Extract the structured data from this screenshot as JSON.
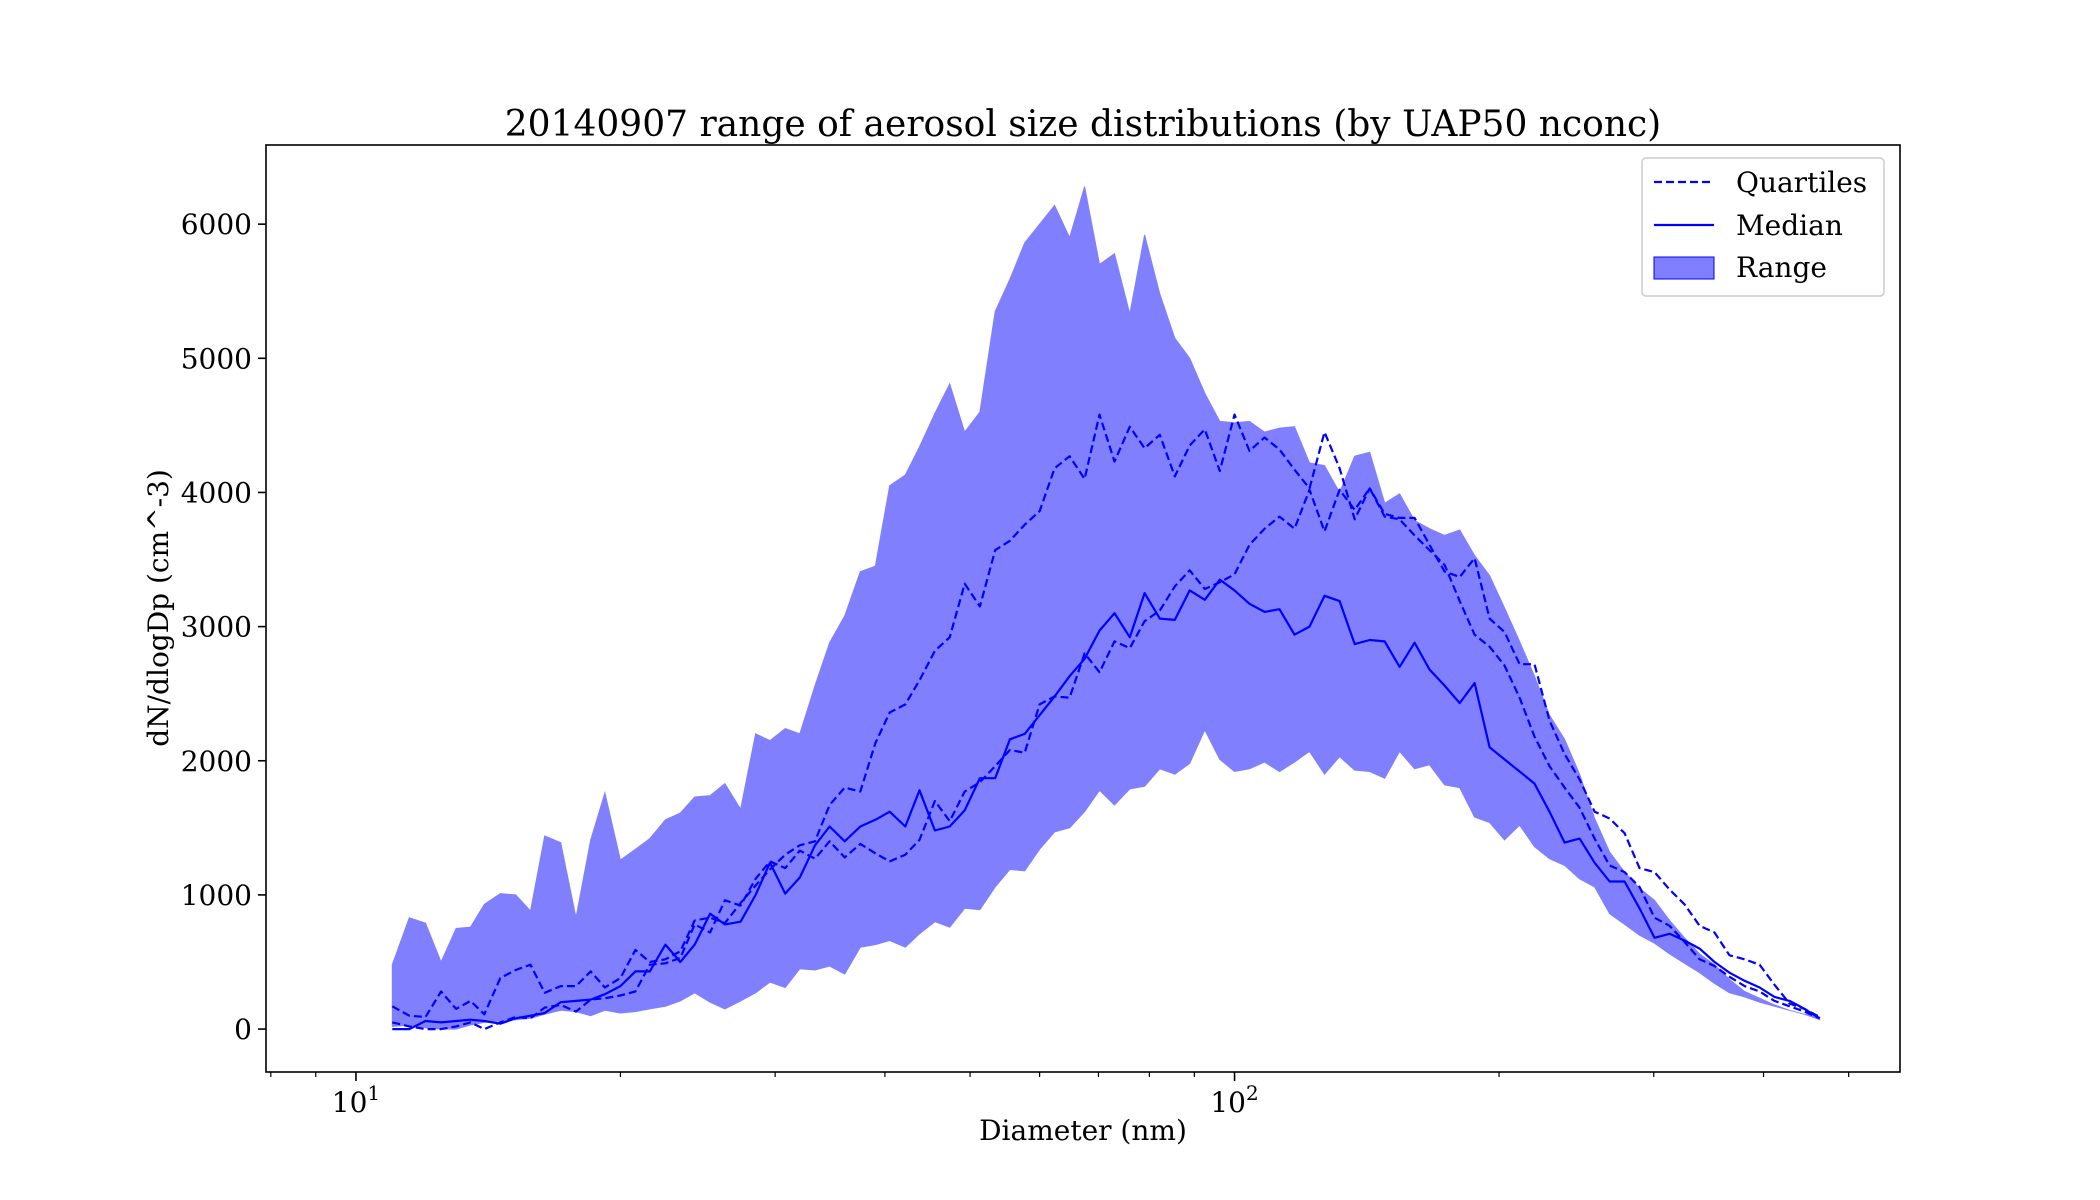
{
  "chart_data": {
    "type": "area",
    "title": "20140907 range of aerosol size distributions (by UAP50 nconc)",
    "xlabel": "Diameter (nm)",
    "ylabel": "dN/dlogDp (cm^-3)",
    "xscale": "log",
    "xlim": [
      7.9,
      572
    ],
    "ylim": [
      -320,
      6590
    ],
    "xticks": [
      {
        "value": 10,
        "base": "10",
        "exp": "1"
      },
      {
        "value": 100,
        "base": "10",
        "exp": "2"
      }
    ],
    "yticks": [
      0,
      1000,
      2000,
      3000,
      4000,
      5000,
      6000
    ],
    "grid": false,
    "legend": {
      "position": "top-right",
      "entries": [
        {
          "label": "Quartiles",
          "style": "dashed"
        },
        {
          "label": "Median",
          "style": "solid"
        },
        {
          "label": "Range",
          "style": "fill"
        }
      ]
    },
    "colors": {
      "line": "#0000ff",
      "fill": "#8080ff"
    },
    "x": [
      11.0,
      11.5,
      12.0,
      12.5,
      13.0,
      13.5,
      14.0,
      14.6,
      15.2,
      15.8,
      16.4,
      17.1,
      17.8,
      18.5,
      19.2,
      20.0,
      20.8,
      21.6,
      22.5,
      23.4,
      24.3,
      25.3,
      26.3,
      27.4,
      28.5,
      29.6,
      30.8,
      32.0,
      33.3,
      34.6,
      36.0,
      37.5,
      39.0,
      40.5,
      42.2,
      43.8,
      45.6,
      47.4,
      49.3,
      51.3,
      53.4,
      55.5,
      57.7,
      60.0,
      62.4,
      64.9,
      67.5,
      70.2,
      73.0,
      76.0,
      79.0,
      82.2,
      85.5,
      88.9,
      92.5,
      96.2,
      100.0,
      104.0,
      108.2,
      112.5,
      117.0,
      121.7,
      126.6,
      131.7,
      137.0,
      142.5,
      148.2,
      154.1,
      160.3,
      166.7,
      173.4,
      180.4,
      187.6,
      195.1,
      202.9,
      211.1,
      219.5,
      228.3,
      237.5,
      247.0,
      256.9,
      267.2,
      277.9,
      289.0,
      300.6,
      312.7,
      325.2,
      338.3,
      351.8,
      365.9,
      380.6,
      395.9,
      411.7,
      428.3,
      445.4,
      463.3
    ],
    "series": [
      {
        "name": "Range",
        "type": "fill_between",
        "upper": [
          480,
          830,
          790,
          500,
          750,
          760,
          930,
          1010,
          1000,
          880,
          1440,
          1390,
          830,
          1410,
          1760,
          1260,
          1340,
          1420,
          1560,
          1610,
          1730,
          1740,
          1830,
          1640,
          2200,
          2150,
          2240,
          2200,
          2560,
          2880,
          3080,
          3410,
          3450,
          4050,
          4130,
          4340,
          4590,
          4810,
          4450,
          4600,
          5350,
          5590,
          5860,
          6000,
          6140,
          5900,
          6280,
          5700,
          5780,
          5330,
          5920,
          5480,
          5150,
          5000,
          4740,
          4530,
          4520,
          4530,
          4450,
          4480,
          4490,
          4220,
          4200,
          4000,
          4270,
          4300,
          3920,
          3990,
          3790,
          3730,
          3680,
          3720,
          3530,
          3380,
          3140,
          2890,
          2630,
          2340,
          2160,
          1900,
          1570,
          1320,
          1170,
          1050,
          960,
          810,
          680,
          560,
          480,
          370,
          280,
          230,
          180,
          140,
          110,
          90
        ],
        "lower": [
          20,
          30,
          10,
          0,
          0,
          30,
          50,
          60,
          70,
          80,
          110,
          140,
          130,
          100,
          140,
          120,
          130,
          150,
          170,
          210,
          270,
          200,
          150,
          210,
          270,
          350,
          310,
          450,
          440,
          470,
          410,
          610,
          630,
          660,
          610,
          710,
          800,
          760,
          900,
          890,
          1060,
          1190,
          1180,
          1340,
          1470,
          1500,
          1620,
          1780,
          1670,
          1790,
          1810,
          1940,
          1900,
          1980,
          2230,
          2010,
          1920,
          1940,
          1990,
          1920,
          1990,
          2070,
          1900,
          2030,
          1930,
          1920,
          1870,
          2070,
          1940,
          1970,
          1820,
          1800,
          1580,
          1540,
          1410,
          1520,
          1360,
          1270,
          1220,
          1120,
          1060,
          860,
          780,
          700,
          640,
          560,
          490,
          420,
          340,
          270,
          240,
          200,
          170,
          140,
          110,
          70
        ]
      },
      {
        "name": "Median",
        "type": "line",
        "values": [
          0,
          0,
          60,
          50,
          60,
          70,
          60,
          40,
          80,
          100,
          120,
          200,
          210,
          220,
          260,
          320,
          430,
          430,
          630,
          500,
          630,
          860,
          780,
          800,
          1000,
          1240,
          1010,
          1130,
          1370,
          1510,
          1400,
          1510,
          1560,
          1620,
          1510,
          1780,
          1480,
          1510,
          1630,
          1870,
          1870,
          2160,
          2200,
          2340,
          2480,
          2630,
          2760,
          2970,
          3100,
          2920,
          3250,
          3060,
          3050,
          3270,
          3200,
          3350,
          3270,
          3170,
          3110,
          3130,
          2940,
          3000,
          3230,
          3190,
          2870,
          2900,
          2890,
          2700,
          2880,
          2680,
          2560,
          2430,
          2580,
          2100,
          2010,
          1920,
          1830,
          1620,
          1390,
          1420,
          1240,
          1100,
          1100,
          900,
          680,
          710,
          660,
          600,
          500,
          420,
          360,
          310,
          240,
          210,
          150,
          80
        ]
      },
      {
        "name": "Quartiles",
        "type": "line",
        "style": "dashed",
        "values": [
          170,
          100,
          90,
          280,
          150,
          210,
          110,
          380,
          440,
          480,
          270,
          320,
          320,
          430,
          310,
          380,
          590,
          500,
          520,
          580,
          810,
          830,
          790,
          940,
          1070,
          1190,
          1300,
          1370,
          1400,
          1670,
          1800,
          1770,
          2130,
          2360,
          2420,
          2600,
          2820,
          2920,
          3320,
          3150,
          3570,
          3640,
          3760,
          3860,
          4180,
          4270,
          4100,
          4580,
          4230,
          4490,
          4330,
          4430,
          4120,
          4350,
          4470,
          4160,
          4580,
          4310,
          4410,
          4320,
          4170,
          4030,
          4450,
          4180,
          3800,
          4030,
          3840,
          3810,
          3810,
          3610,
          3410,
          3370,
          3510,
          3060,
          2960,
          2720,
          2720,
          2300,
          2050,
          1860,
          1620,
          1570,
          1460,
          1200,
          1170,
          1040,
          930,
          770,
          720,
          550,
          520,
          480,
          330,
          190,
          150,
          90
        ]
      },
      {
        "name": "Quartiles",
        "type": "line",
        "style": "dashed",
        "values": [
          50,
          20,
          0,
          0,
          20,
          50,
          0,
          50,
          90,
          80,
          160,
          180,
          130,
          220,
          230,
          250,
          280,
          480,
          490,
          530,
          780,
          720,
          960,
          920,
          1120,
          1250,
          1200,
          1330,
          1270,
          1400,
          1280,
          1380,
          1310,
          1250,
          1300,
          1410,
          1700,
          1550,
          1770,
          1840,
          1960,
          2080,
          2060,
          2420,
          2480,
          2470,
          2800,
          2660,
          2890,
          2840,
          3040,
          3120,
          3300,
          3420,
          3280,
          3330,
          3390,
          3610,
          3730,
          3820,
          3730,
          4020,
          3710,
          4020,
          3870,
          4030,
          3820,
          3800,
          3680,
          3570,
          3460,
          3190,
          2940,
          2850,
          2710,
          2470,
          2180,
          1960,
          1800,
          1650,
          1420,
          1220,
          1170,
          1060,
          830,
          770,
          650,
          520,
          470,
          390,
          320,
          280,
          210,
          170,
          130,
          80
        ]
      }
    ]
  }
}
